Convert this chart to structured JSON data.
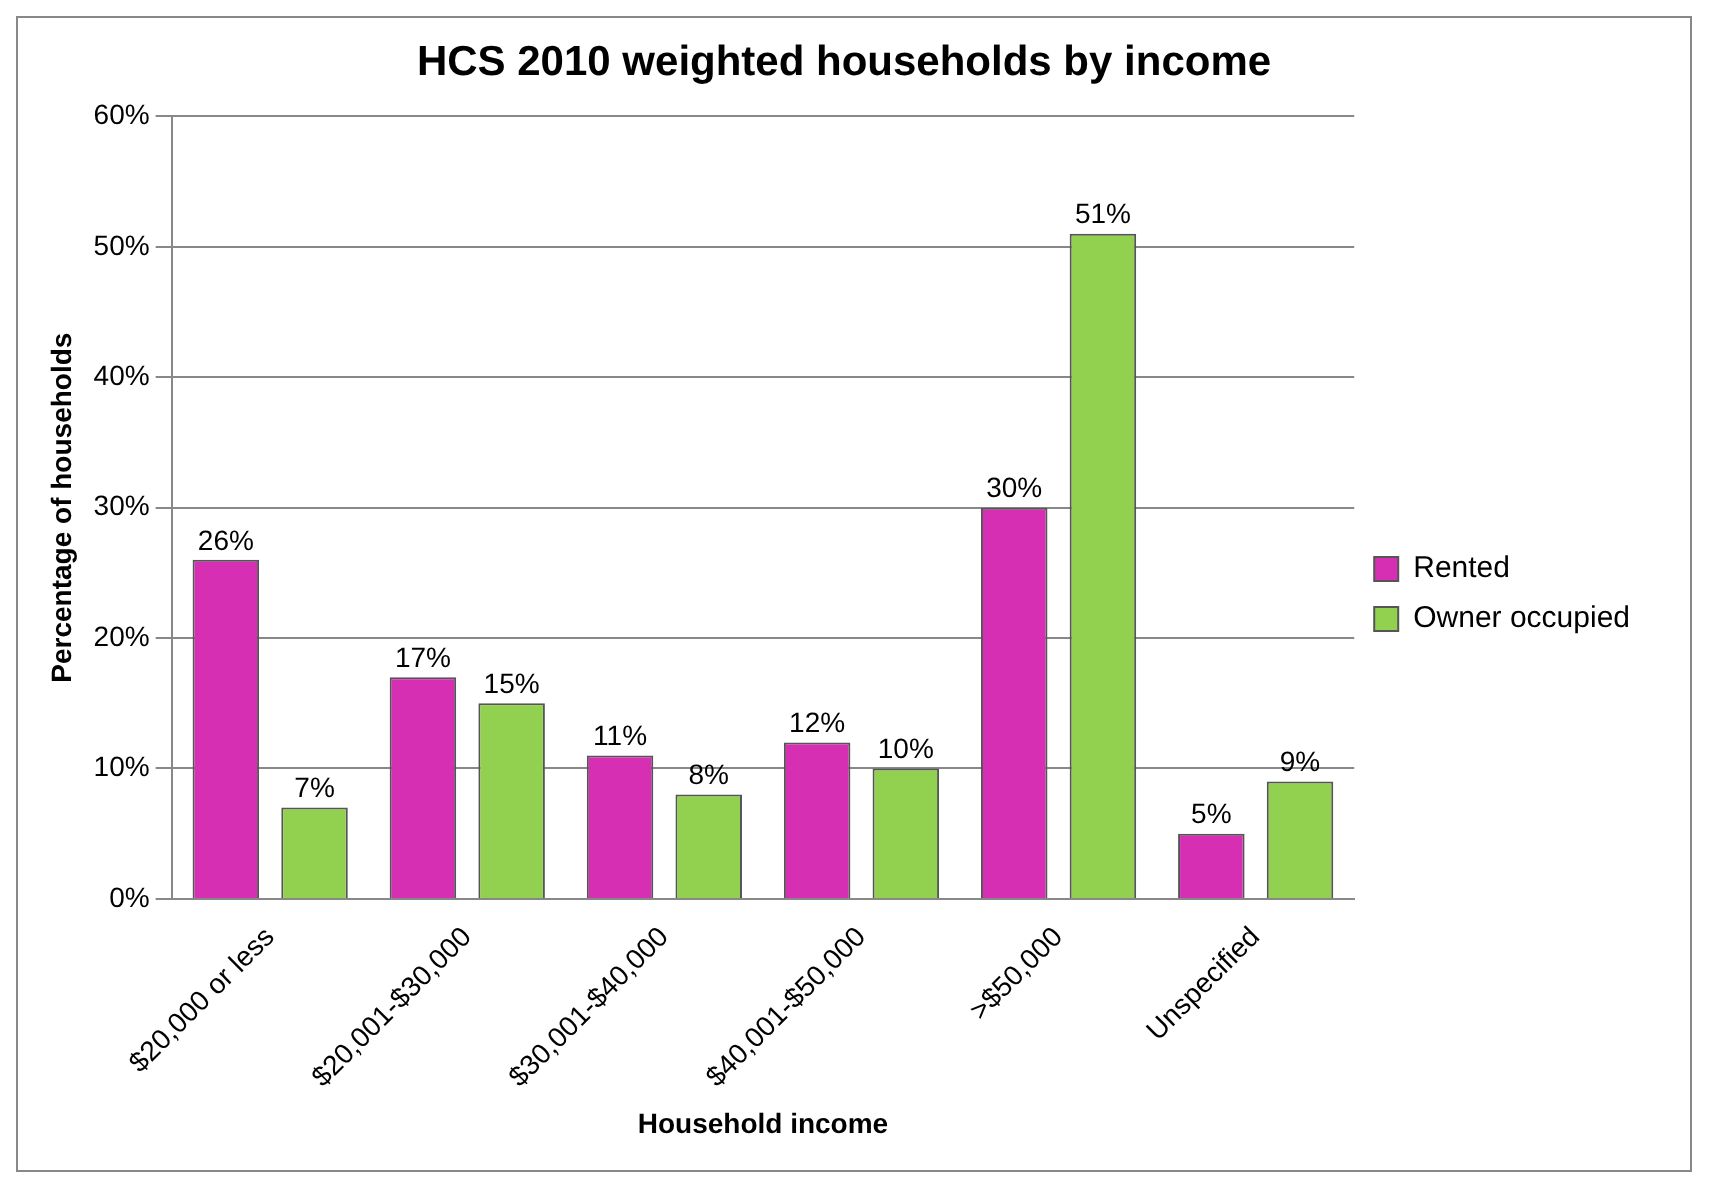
{
  "chart_data": {
    "type": "bar",
    "title": "HCS 2010 weighted households by income",
    "xlabel": "Household income",
    "ylabel": "Percentage of households",
    "categories": [
      "$20,000 or less",
      "$20,001-$30,000",
      "$30,001-$40,000",
      "$40,001-$50,000",
      ">$50,000",
      "Unspecified"
    ],
    "series": [
      {
        "name": "Rented",
        "color": "#d62fb4",
        "values": [
          26,
          17,
          11,
          12,
          30,
          5
        ],
        "value_labels": [
          "26%",
          "17%",
          "11%",
          "12%",
          "30%",
          "5%"
        ]
      },
      {
        "name": "Owner occupied",
        "color": "#92d050",
        "values": [
          7,
          15,
          8,
          10,
          51,
          9
        ],
        "value_labels": [
          "7%",
          "15%",
          "8%",
          "10%",
          "51%",
          "9%"
        ]
      }
    ],
    "ylim": [
      0,
      60
    ],
    "yticks": [
      {
        "value": 0,
        "label": "0%"
      },
      {
        "value": 10,
        "label": "10%"
      },
      {
        "value": 20,
        "label": "20%"
      },
      {
        "value": 30,
        "label": "30%"
      },
      {
        "value": 40,
        "label": "40%"
      },
      {
        "value": 50,
        "label": "50%"
      },
      {
        "value": 60,
        "label": "60%"
      }
    ],
    "grid": "y",
    "legend": "right"
  }
}
